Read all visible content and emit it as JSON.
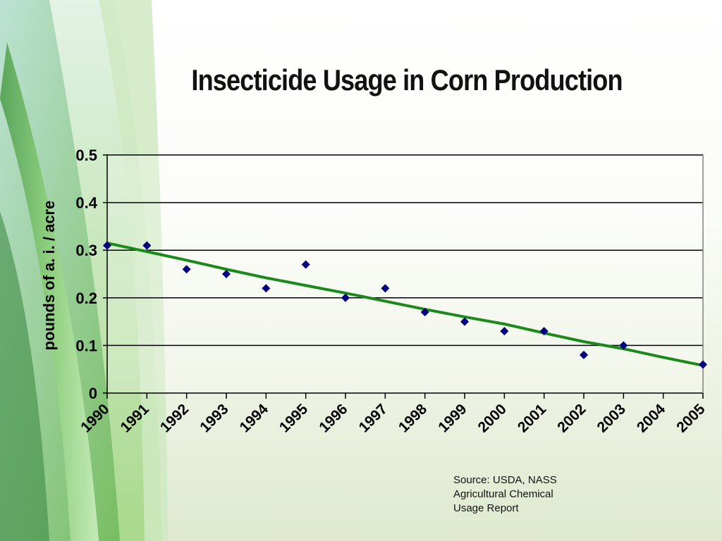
{
  "slide": {
    "title": "Insecticide Usage in Corn Production",
    "source_lines": [
      "Source: USDA, NASS",
      "Agricultural Chemical",
      "Usage Report"
    ]
  },
  "colors": {
    "marker": "#00007f",
    "trendline": "#1a8a1a",
    "gridline": "#000000",
    "plot_frame": "#808080"
  },
  "chart_data": {
    "type": "scatter",
    "title": "Insecticide Usage in Corn Production",
    "xlabel": "",
    "ylabel": "pounds of a. i. / acre",
    "categories": [
      "1990",
      "1991",
      "1992",
      "1993",
      "1994",
      "1995",
      "1996",
      "1997",
      "1998",
      "1999",
      "2000",
      "2001",
      "2002",
      "2003",
      "2004",
      "2005"
    ],
    "series": [
      {
        "points": [
          {
            "x": "1990",
            "y": 0.31
          },
          {
            "x": "1991",
            "y": 0.31
          },
          {
            "x": "1992",
            "y": 0.26
          },
          {
            "x": "1993",
            "y": 0.25
          },
          {
            "x": "1994",
            "y": 0.22
          },
          {
            "x": "1995",
            "y": 0.27
          },
          {
            "x": "1996",
            "y": 0.2
          },
          {
            "x": "1997",
            "y": 0.22
          },
          {
            "x": "1998",
            "y": 0.17
          },
          {
            "x": "1999",
            "y": 0.15
          },
          {
            "x": "2000",
            "y": 0.13
          },
          {
            "x": "2001",
            "y": 0.13
          },
          {
            "x": "2002",
            "y": 0.08
          },
          {
            "x": "2003",
            "y": 0.1
          },
          {
            "x": "2005",
            "y": 0.06
          }
        ]
      }
    ],
    "trendline": {
      "type": "polynomial",
      "points": [
        {
          "x": "1990",
          "y": 0.315
        },
        {
          "x": "1991",
          "y": 0.297
        },
        {
          "x": "1992",
          "y": 0.279
        },
        {
          "x": "1993",
          "y": 0.26
        },
        {
          "x": "1994",
          "y": 0.242
        },
        {
          "x": "1995",
          "y": 0.226
        },
        {
          "x": "1996",
          "y": 0.21
        },
        {
          "x": "1997",
          "y": 0.193
        },
        {
          "x": "1998",
          "y": 0.176
        },
        {
          "x": "1999",
          "y": 0.16
        },
        {
          "x": "2000",
          "y": 0.145
        },
        {
          "x": "2001",
          "y": 0.126
        },
        {
          "x": "2002",
          "y": 0.108
        },
        {
          "x": "2003",
          "y": 0.093
        },
        {
          "x": "2004",
          "y": 0.075
        },
        {
          "x": "2005",
          "y": 0.058
        }
      ]
    },
    "ylim": [
      0,
      0.5
    ],
    "yticks": [
      "0",
      "0.1",
      "0.2",
      "0.3",
      "0.4",
      "0.5"
    ],
    "grid": true,
    "legend": "none"
  }
}
